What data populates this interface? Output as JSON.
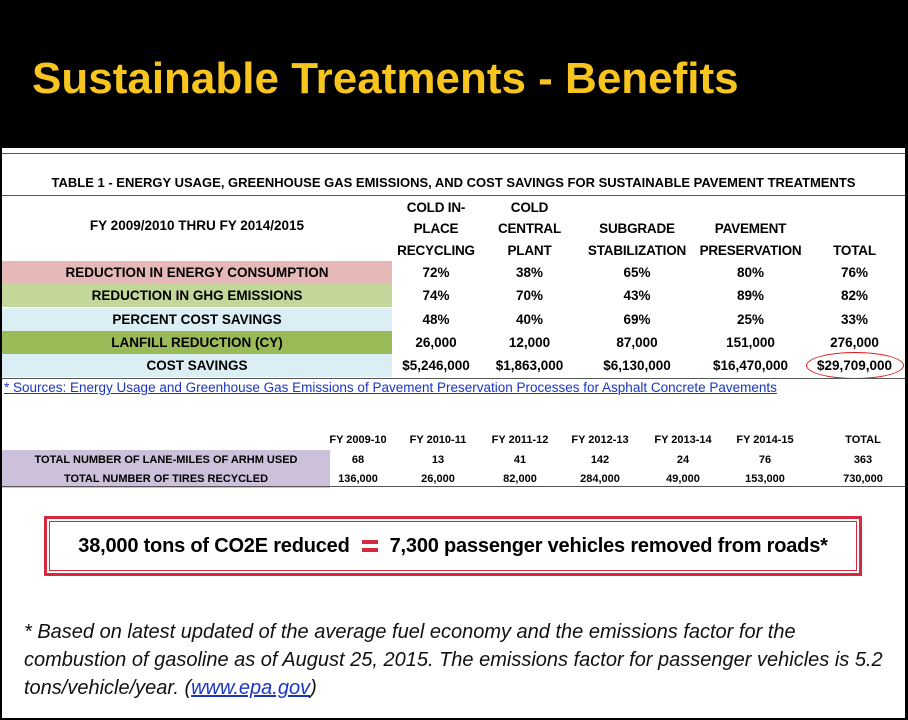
{
  "title": "Sustainable Treatments - Benefits",
  "table1": {
    "title": "TABLE 1 - ENERGY USAGE, GREENHOUSE GAS EMISSIONS, AND COST SAVINGS FOR SUSTAINABLE PAVEMENT TREATMENTS",
    "period": "FY 2009/2010 THRU FY 2014/2015",
    "columns": [
      [
        "COLD IN-",
        "PLACE",
        "RECYCLING"
      ],
      [
        "COLD",
        "CENTRAL",
        "PLANT"
      ],
      [
        "",
        "",
        "SUBGRADE STABILIZATION"
      ],
      [
        "",
        "PAVEMENT",
        "PRESERVATION"
      ],
      [
        "",
        "",
        "TOTAL"
      ]
    ],
    "rows": [
      {
        "label": "REDUCTION IN ENERGY CONSUMPTION",
        "color": "#e6b8b7",
        "values": [
          "72%",
          "38%",
          "65%",
          "80%",
          "76%"
        ]
      },
      {
        "label": "REDUCTION IN GHG EMISSIONS",
        "color": "#c4d79b",
        "values": [
          "74%",
          "70%",
          "43%",
          "89%",
          "82%"
        ]
      },
      {
        "label": "PERCENT COST SAVINGS",
        "color": "#daeef3",
        "values": [
          "48%",
          "40%",
          "69%",
          "25%",
          "33%"
        ]
      },
      {
        "label": "LANFILL REDUCTION (CY)",
        "color": "#9bbb59",
        "values": [
          "26,000",
          "12,000",
          "87,000",
          "151,000",
          "276,000"
        ]
      },
      {
        "label": "COST SAVINGS",
        "color": "#daeef3",
        "values": [
          "$5,246,000",
          "$1,863,000",
          "$6,130,000",
          "$16,470,000",
          "$29,709,000"
        ]
      }
    ],
    "source": "* Sources: Energy Usage and Greenhouse Gas Emissions of Pavement Preservation Processes for Asphalt Concrete Pavements"
  },
  "table2": {
    "columns": [
      "FY 2009-10",
      "FY 2010-11",
      "FY 2011-12",
      "FY 2012-13",
      "FY 2013-14",
      "FY 2014-15",
      "TOTAL"
    ],
    "label_color": "#ccc0da",
    "rows": [
      {
        "label": "TOTAL NUMBER OF LANE-MILES OF ARHM USED",
        "values": [
          "68",
          "13",
          "41",
          "142",
          "24",
          "76",
          "363"
        ]
      },
      {
        "label": "TOTAL NUMBER OF TIRES RECYCLED",
        "values": [
          "136,000",
          "26,000",
          "82,000",
          "284,000",
          "49,000",
          "153,000",
          "730,000"
        ]
      }
    ]
  },
  "callout": {
    "left": "38,000 tons of CO2E reduced",
    "right": "7,300 passenger vehicles removed from roads*"
  },
  "footnote": {
    "text": "* Based on latest updated of the average fuel economy and the emissions factor for the combustion of gasoline as of August 25, 2015. The emissions factor for passenger vehicles is 5.2 tons/vehicle/year. (",
    "link": "www.epa.gov",
    "end": ")"
  },
  "colors": {
    "title": "#f7c51e",
    "accent": "#d6283e",
    "link": "#1a35c8"
  }
}
